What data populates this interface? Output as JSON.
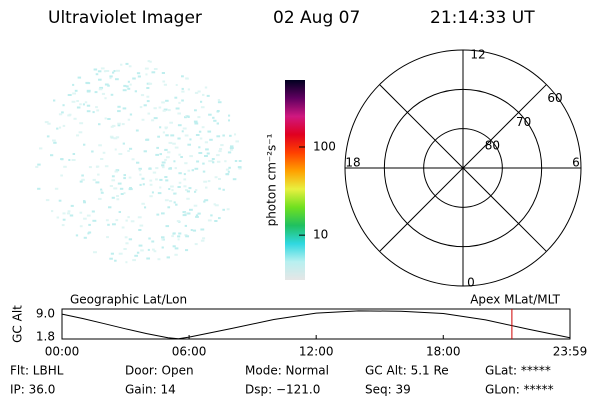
{
  "header": {
    "title": "Ultraviolet Imager",
    "date": "02 Aug 07",
    "time": "21:14:33 UT"
  },
  "chart_data": [
    {
      "type": "colorbar",
      "ylabel": "photon cm⁻²s⁻¹",
      "log": true,
      "ylim": [
        3.1,
        575
      ],
      "yticks": [
        10,
        100
      ],
      "colors": [
        "#e6e6e6",
        "#b8f0f0",
        "#30d8e0",
        "#20c060",
        "#70e020",
        "#e8f040",
        "#ffa000",
        "#ff4000",
        "#e00020",
        "#d01880",
        "#600060",
        "#000020"
      ]
    },
    {
      "type": "polar",
      "rlim": [
        90,
        60
      ],
      "rticks": [
        80,
        70,
        60
      ],
      "angular_labels": [
        "12",
        "18",
        "6",
        "0"
      ]
    },
    {
      "type": "line",
      "ylabel": "GC Alt",
      "title_left": "Geographic Lat/Lon",
      "title_right": "Apex MLat/MLT",
      "x": [
        0,
        1,
        2,
        3,
        4,
        5,
        5.5,
        6,
        8,
        10,
        12,
        14,
        16,
        18,
        20,
        22,
        23.9833
      ],
      "values": [
        9.0,
        7.6,
        6.0,
        4.4,
        2.9,
        1.6,
        1.3,
        1.8,
        4.5,
        7.3,
        9.3,
        10.0,
        9.9,
        9.2,
        7.2,
        4.3,
        1.6
      ],
      "color": "#000000",
      "current_time": 21.24,
      "current_color": "#d00000",
      "xlim": [
        0,
        23.9833
      ],
      "ylim": [
        1.2,
        10.6
      ],
      "xticks": [
        {
          "value": 0,
          "label": "00:00"
        },
        {
          "value": 6,
          "label": "06:00"
        },
        {
          "value": 12,
          "label": "12:00"
        },
        {
          "value": 18,
          "label": "18:00"
        },
        {
          "value": 23.9833,
          "label": "23:59"
        }
      ],
      "yticks": [
        {
          "value": 9,
          "label": "9.0"
        },
        1.8
      ]
    }
  ],
  "status": [
    [
      "Flt: LBHL",
      "IP: 36.0"
    ],
    [
      "Door: Open",
      "Gain: 14"
    ],
    [
      "Mode: Normal",
      "Dsp: −121.0"
    ],
    [
      "GC Alt: 5.1 Re",
      "Seq: 39"
    ],
    [
      "GLat: *****",
      "GLon: *****"
    ]
  ]
}
